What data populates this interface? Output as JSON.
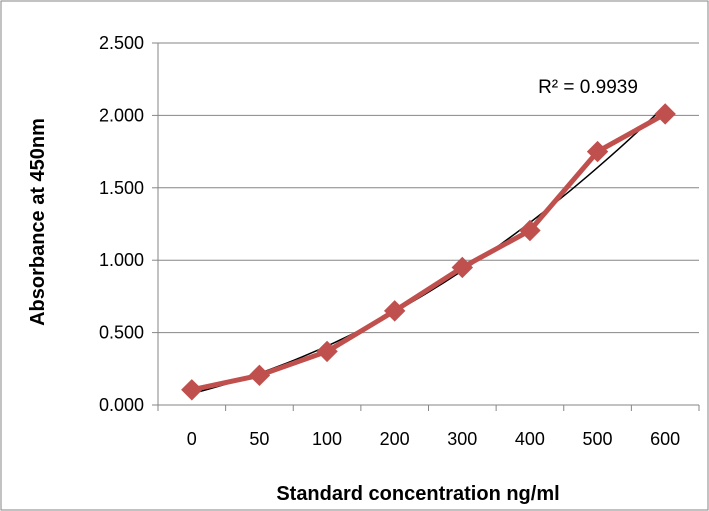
{
  "chart_data": {
    "type": "line",
    "title": "",
    "xlabel": "Standard concentration ng/ml",
    "ylabel": "Absorbance at 450nm",
    "categories": [
      "0",
      "50",
      "100",
      "200",
      "300",
      "400",
      "500",
      "600"
    ],
    "series": [
      {
        "values": [
          0.105,
          0.205,
          0.37,
          0.65,
          0.95,
          1.205,
          1.75,
          2.01
        ]
      }
    ],
    "trendline": {
      "type": "polynomial",
      "r2_label": "R² = 0.9939"
    },
    "ylim": [
      0,
      2.5
    ],
    "y_ticks": [
      "0.000",
      "0.500",
      "1.000",
      "1.500",
      "2.000",
      "2.500"
    ],
    "grid": "horizontal",
    "legend": "none",
    "colors": {
      "series": "#c0504d",
      "trendline": "#000000",
      "grid": "#868686",
      "axis": "#868686"
    }
  }
}
